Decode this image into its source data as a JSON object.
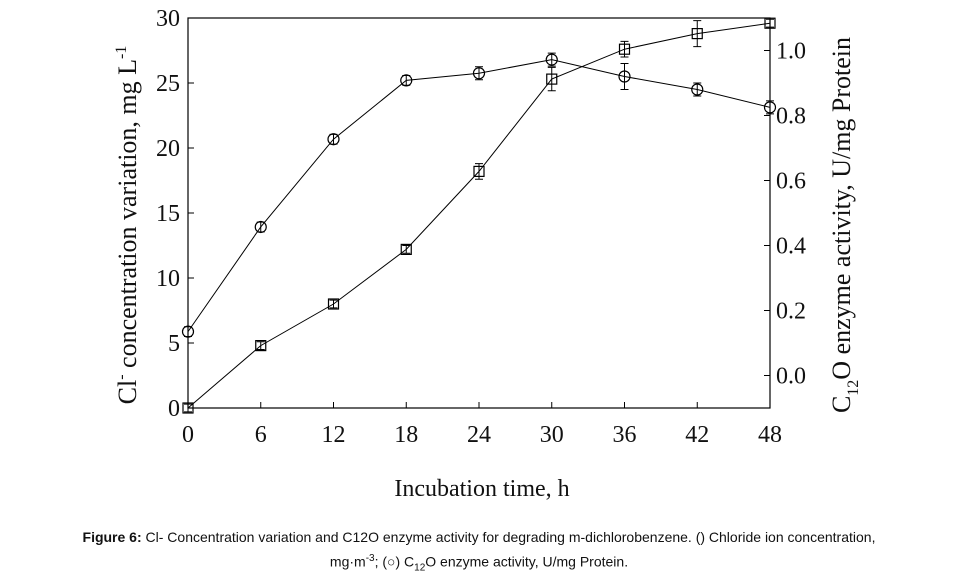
{
  "chart_data": {
    "type": "line",
    "xlabel": "Incubation time, h",
    "ylabel_parts": [
      "Cl",
      "-",
      " concentration variation, mg L",
      "-1"
    ],
    "y2label_parts": [
      "C",
      "12",
      "O enzyme activity, U/mg Protein"
    ],
    "x": [
      0,
      6,
      12,
      18,
      24,
      30,
      36,
      42,
      48
    ],
    "xlim": [
      0,
      48
    ],
    "xticks": [
      0,
      6,
      12,
      18,
      24,
      30,
      36,
      42,
      48
    ],
    "ylim": [
      0,
      30
    ],
    "yticks": [
      0,
      5,
      10,
      15,
      20,
      25,
      30
    ],
    "y2lim": [
      -0.1,
      1.1
    ],
    "y2ticks": [
      {
        "value": 0,
        "label": "0.0"
      },
      0.2,
      0.4,
      0.6,
      0.8,
      {
        "value": 1,
        "label": "1.0"
      }
    ],
    "series": [
      {
        "marker": "square",
        "color": "#000000",
        "values": [
          0,
          4.8,
          8.0,
          12.2,
          18.2,
          25.3,
          27.6,
          28.8,
          29.6
        ],
        "errors": [
          0.3,
          0.3,
          0.3,
          0.3,
          0.6,
          0.9,
          0.6,
          1.0,
          0.3
        ]
      },
      {
        "marker": "circle",
        "color": "#000000",
        "axis": "y2",
        "values": [
          0.135,
          0.457,
          0.727,
          0.908,
          0.93,
          0.972,
          0.92,
          0.88,
          0.825
        ],
        "errors": [
          0.015,
          0.015,
          0.015,
          0.015,
          0.02,
          0.02,
          0.04,
          0.02,
          0.02
        ]
      }
    ]
  },
  "caption": {
    "label": "Figure 6:",
    "text1": " Cl- Concentration variation and C12O enzyme activity for degrading m-dichlorobenzene. () Chloride ion concentration,",
    "text2": "mg·m",
    "sup": "-3",
    "text3": "; (○) C",
    "sub": "12",
    "text4": "O enzyme activity, U/mg Protein."
  }
}
